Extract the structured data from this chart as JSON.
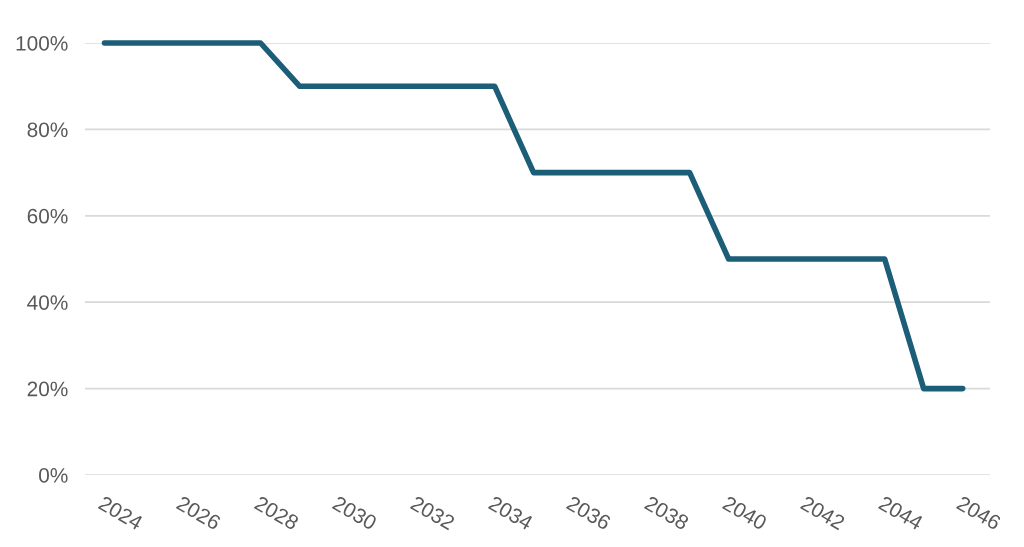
{
  "chart_data": {
    "type": "line",
    "x": [
      2024,
      2028,
      2029,
      2034,
      2035,
      2039,
      2040,
      2044,
      2045,
      2046
    ],
    "series": [
      {
        "color": "#1c5d78",
        "values": [
          100,
          100,
          90,
          90,
          70,
          70,
          50,
          50,
          20,
          20
        ]
      }
    ],
    "xlim": [
      2023.5,
      2046.7
    ],
    "xticks": [
      2024,
      2026,
      2028,
      2030,
      2032,
      2034,
      2036,
      2038,
      2040,
      2042,
      2044,
      2046
    ],
    "ylim": [
      0,
      100
    ],
    "yticks": [
      {
        "value": 0,
        "label": "0%"
      },
      {
        "value": 20,
        "label": "20%"
      },
      {
        "value": 40,
        "label": "40%"
      },
      {
        "value": 60,
        "label": "60%"
      },
      {
        "value": 80,
        "label": "80%"
      },
      {
        "value": 100,
        "label": "100%"
      }
    ],
    "grid": "y",
    "marker": "none",
    "line_style": "solid",
    "legend": false
  }
}
